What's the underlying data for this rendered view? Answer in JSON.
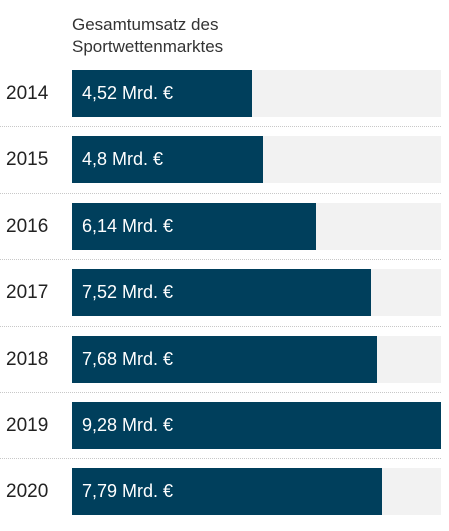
{
  "column_header": "Gesamtumsatz des Sportwettenmarktes",
  "colors": {
    "bar": "#003f5c",
    "track": "#f2f2f2"
  },
  "chart_data": {
    "type": "bar",
    "orientation": "horizontal",
    "categories": [
      "2014",
      "2015",
      "2016",
      "2017",
      "2018",
      "2019",
      "2020"
    ],
    "values": [
      4.52,
      4.8,
      6.14,
      7.52,
      7.68,
      9.28,
      7.79
    ],
    "value_labels": [
      "4,52 Mrd. €",
      "4,8 Mrd. €",
      "6,14 Mrd. €",
      "7,52 Mrd. €",
      "7,68 Mrd. €",
      "9,28 Mrd. €",
      "7,79 Mrd. €"
    ],
    "xlim": [
      0,
      9.28
    ],
    "grid": false,
    "legend": "none"
  }
}
